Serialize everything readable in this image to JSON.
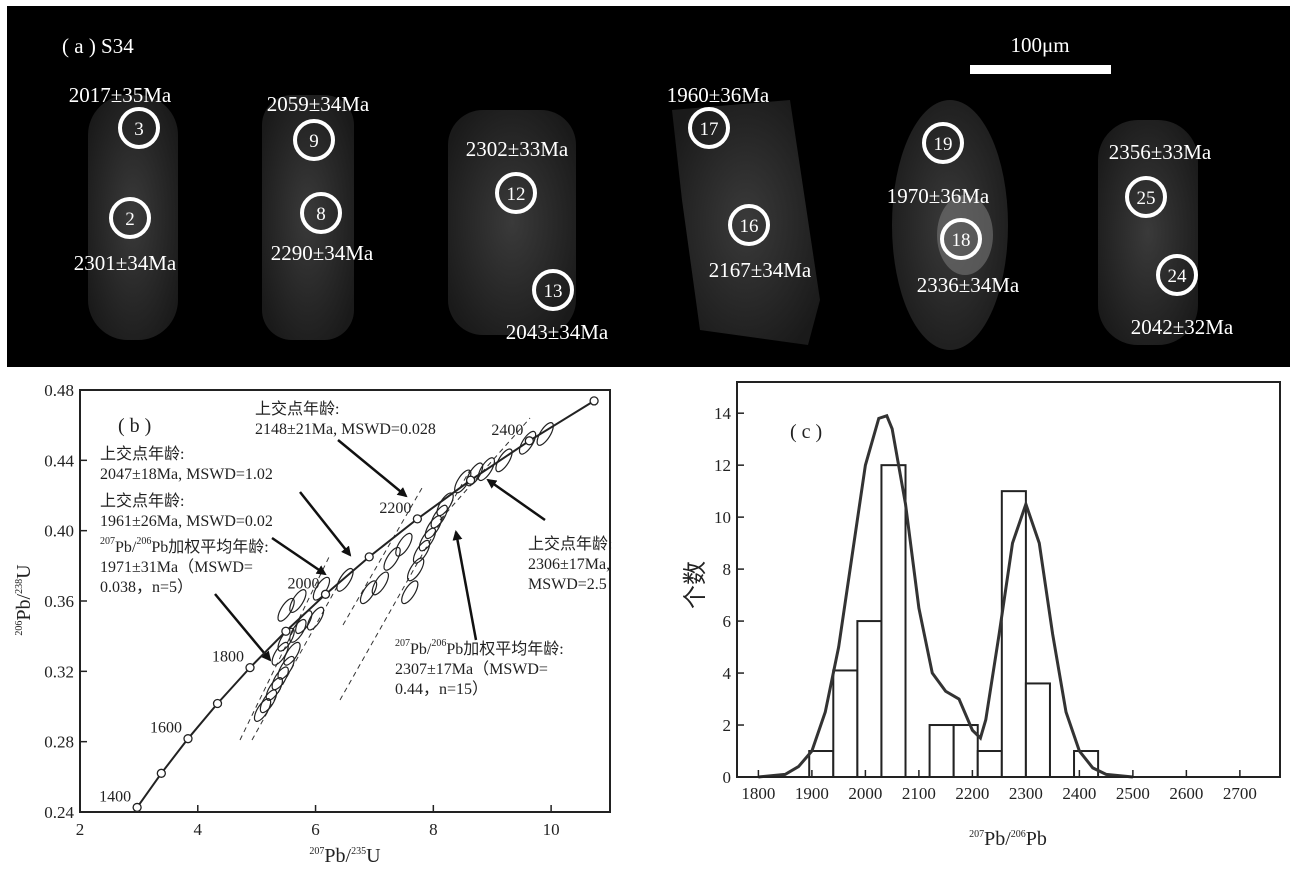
{
  "panel_a": {
    "label": "( a ) S34",
    "scale_bar": "100μm",
    "spots": [
      {
        "id": "3",
        "age": "2017±35Ma"
      },
      {
        "id": "2",
        "age": "2301±34Ma"
      },
      {
        "id": "9",
        "age": "2059±34Ma"
      },
      {
        "id": "8",
        "age": "2290±34Ma"
      },
      {
        "id": "12",
        "age": "2302±33Ma"
      },
      {
        "id": "13",
        "age": "2043±34Ma"
      },
      {
        "id": "17",
        "age": "1960±36Ma"
      },
      {
        "id": "16",
        "age": "2167±34Ma"
      },
      {
        "id": "19",
        "age": "1970±36Ma"
      },
      {
        "id": "18",
        "age": "2336±34Ma"
      },
      {
        "id": "25",
        "age": "2356±33Ma"
      },
      {
        "id": "24",
        "age": "2042±32Ma"
      }
    ]
  },
  "chart_data": [
    {
      "type": "concordia",
      "panel_label": "( b )",
      "x_label": [
        {
          "sup": "207"
        },
        "Pb/",
        {
          "sup": "235"
        },
        "U"
      ],
      "y_label": [
        {
          "sup": "206"
        },
        "Pb/",
        {
          "sup": "238"
        },
        "U"
      ],
      "xlim": [
        2,
        11
      ],
      "ylim": [
        0.24,
        0.48
      ],
      "xticks": [
        2,
        4,
        6,
        8,
        10
      ],
      "yticks": [
        0.24,
        0.28,
        0.32,
        0.36,
        {
          "value": 0.4,
          "label": "0.40"
        },
        0.44,
        0.48
      ],
      "concordia": {
        "x": [
          2.97,
          3.381,
          3.834,
          4.335,
          4.887,
          5.496,
          6.169,
          6.911,
          7.729,
          8.633,
          9.63,
          10.73
        ],
        "y": [
          0.2426,
          0.262,
          0.2817,
          0.3017,
          0.3221,
          0.3428,
          0.3638,
          0.3851,
          0.4067,
          0.4287,
          0.4511,
          0.4738
        ],
        "labels": [
          1400,
          null,
          1600,
          null,
          1800,
          null,
          2000,
          null,
          2200,
          null,
          2400,
          null
        ]
      },
      "ellipses": {
        "x": [
          5.1,
          5.2,
          5.3,
          5.4,
          5.5,
          5.6,
          5.4,
          5.5,
          5.7,
          5.8,
          6.0,
          5.5,
          5.7,
          6.1,
          6.5,
          6.9,
          7.1,
          7.3,
          7.5,
          7.6,
          7.7,
          7.8,
          7.9,
          8.0,
          8.1,
          8.2,
          8.5,
          8.7,
          8.9,
          9.2,
          9.6,
          9.9
        ],
        "y": [
          0.298,
          0.303,
          0.31,
          0.316,
          0.322,
          0.33,
          0.33,
          0.338,
          0.343,
          0.348,
          0.35,
          0.355,
          0.36,
          0.367,
          0.372,
          0.365,
          0.37,
          0.384,
          0.392,
          0.365,
          0.378,
          0.388,
          0.395,
          0.402,
          0.408,
          0.415,
          0.428,
          0.432,
          0.435,
          0.44,
          0.45,
          0.455
        ]
      },
      "annotations": [
        {
          "lines": [
            [
              "上交点年龄:"
            ],
            [
              "2148±21Ma, MSWD=0.028"
            ]
          ]
        },
        {
          "lines": [
            [
              "上交点年龄:"
            ],
            [
              "2047±18Ma, MSWD=1.02"
            ]
          ]
        },
        {
          "lines": [
            [
              "上交点年龄:"
            ],
            [
              "1961±26Ma, MSWD=0.02"
            ]
          ]
        },
        {
          "lines": [
            [
              {
                "sup": "207"
              },
              "Pb/",
              {
                "sup": "206"
              },
              "Pb加权平均年龄:"
            ],
            [
              "1971±31Ma（MSWD="
            ],
            [
              "0.038，n=5）"
            ]
          ]
        },
        {
          "lines": [
            [
              "上交点年龄:"
            ],
            [
              "2306±17Ma,"
            ],
            [
              "MSWD=2.5"
            ]
          ]
        },
        {
          "lines": [
            [
              {
                "sup": "207"
              },
              "Pb/",
              {
                "sup": "206"
              },
              "Pb加权平均年龄:"
            ],
            [
              "2307±17Ma（MSWD="
            ],
            [
              "0.44，n=15）"
            ]
          ]
        }
      ]
    },
    {
      "type": "histogram",
      "panel_label": "( c )",
      "x_label": [
        {
          "sup": "207"
        },
        "Pb/",
        {
          "sup": "206"
        },
        "Pb"
      ],
      "y_label": "个数",
      "xlim": [
        1760,
        2775
      ],
      "ylim": [
        0,
        15.2
      ],
      "xticks": [
        1800,
        1900,
        2000,
        2100,
        2200,
        2300,
        2400,
        2500,
        2600,
        2700
      ],
      "yticks": [
        0,
        2,
        4,
        6,
        8,
        10,
        12,
        14
      ],
      "bins": [
        1895,
        1940,
        1985,
        2030,
        2075,
        2120,
        2165,
        2210,
        2255,
        2300,
        2345,
        2390,
        2435
      ],
      "counts": [
        1,
        4.1,
        6,
        12,
        0,
        2,
        2,
        1,
        11,
        3.6,
        0,
        1
      ],
      "curve": {
        "x": [
          1800,
          1850,
          1875,
          1900,
          1925,
          1950,
          1975,
          2000,
          2025,
          2040,
          2050,
          2075,
          2100,
          2125,
          2150,
          2175,
          2200,
          2215,
          2225,
          2250,
          2275,
          2300,
          2325,
          2350,
          2375,
          2400,
          2425,
          2450,
          2500
        ],
        "y": [
          0,
          0.1,
          0.4,
          1.0,
          2.5,
          5,
          8.5,
          12,
          13.8,
          13.9,
          13.4,
          10.5,
          6.5,
          4.0,
          3.3,
          3.0,
          1.8,
          1.5,
          2.2,
          5.5,
          9,
          10.5,
          9,
          5.5,
          2.5,
          1.0,
          0.35,
          0.1,
          0
        ]
      }
    }
  ]
}
